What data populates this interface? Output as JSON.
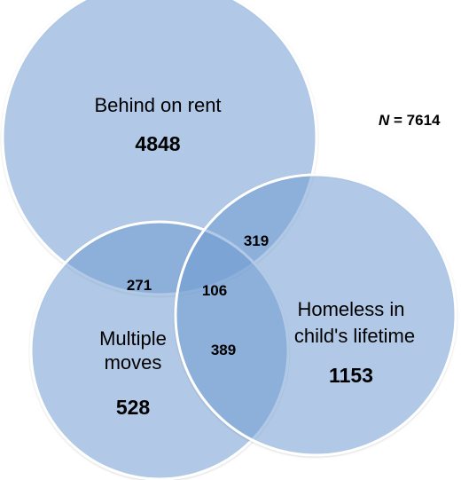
{
  "sample_size": {
    "symbol": "N",
    "text": " = 7614"
  },
  "sets": [
    {
      "id": "behind_rent",
      "label_lines": [
        "Behind on rent"
      ],
      "count": "4848"
    },
    {
      "id": "multiple_moves",
      "label_lines": [
        "Multiple",
        "moves"
      ],
      "count": "528"
    },
    {
      "id": "homeless",
      "label_lines": [
        "Homeless in",
        "child's lifetime"
      ],
      "count": "1153"
    }
  ],
  "intersections": {
    "rent_and_homeless": "319",
    "rent_and_moves": "271",
    "all_three": "106",
    "moves_and_homeless": "389"
  },
  "colors": {
    "circle_fill": "#6F9FD8",
    "circle_stroke": "#FFFFFF"
  }
}
